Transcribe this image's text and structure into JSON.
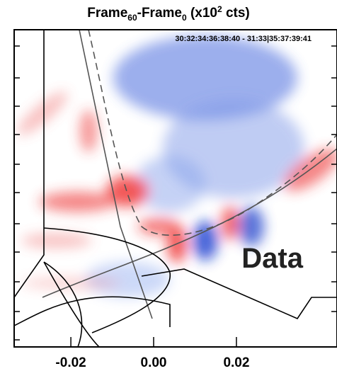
{
  "chart_data": {
    "type": "image",
    "title_parts": [
      "Frame",
      "60",
      "-Frame",
      "0",
      " (x10",
      "2",
      " cts)"
    ],
    "annotation": "30:32:34:36:38:40 - 31:33|35:37:39:41",
    "label": "Data",
    "xlim": [
      -0.0337,
      0.0443
    ],
    "xticks": [
      -0.02,
      {
        "value": 0,
        "label": "0.00"
      },
      0.02
    ]
  }
}
